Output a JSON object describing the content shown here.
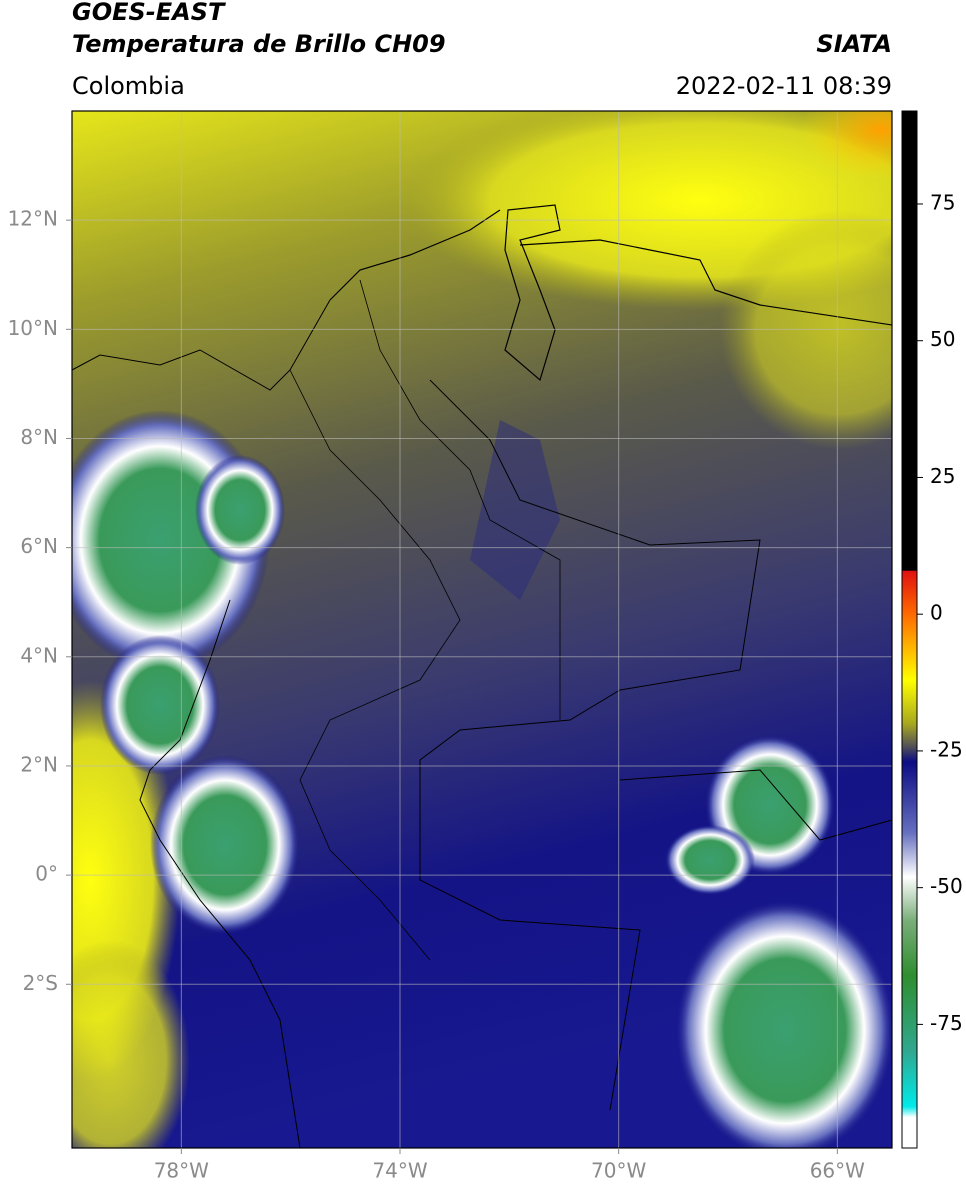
{
  "chart_data": {
    "type": "map",
    "title": "GOES-EAST",
    "subtitle": "Temperatura de Brillo CH09",
    "region": "Colombia",
    "source": "SIATA",
    "timestamp": "2022-02-11 08:39",
    "xlim": [
      -80,
      -65
    ],
    "ylim": [
      -5,
      14
    ],
    "xticks": [
      {
        "value": -78,
        "label": "78°W"
      },
      {
        "value": -74,
        "label": "74°W"
      },
      {
        "value": -70,
        "label": "70°W"
      },
      {
        "value": -66,
        "label": "66°W"
      }
    ],
    "yticks": [
      {
        "value": 12,
        "label": "12°N"
      },
      {
        "value": 10,
        "label": "10°N"
      },
      {
        "value": 8,
        "label": "8°N"
      },
      {
        "value": 6,
        "label": "6°N"
      },
      {
        "value": 4,
        "label": "4°N"
      },
      {
        "value": 2,
        "label": "2°N"
      },
      {
        "value": 0,
        "label": "0°"
      },
      {
        "value": -2,
        "label": "2°S"
      }
    ],
    "grid": true,
    "colorbar_lim": [
      -97.6,
      92
    ],
    "colorbar_ticks": [
      75,
      50,
      25,
      0,
      -25,
      -50,
      -75
    ],
    "colormap": [
      {
        "value": 92,
        "color": "#000000"
      },
      {
        "value": 8,
        "color": "#000000"
      },
      {
        "value": 7.9,
        "color": "#e01010"
      },
      {
        "value": 0,
        "color": "#ff6a00"
      },
      {
        "value": -12,
        "color": "#ffff00"
      },
      {
        "value": -20,
        "color": "#a8a820"
      },
      {
        "value": -24,
        "color": "#555555"
      },
      {
        "value": -27,
        "color": "#0c0c84"
      },
      {
        "value": -40,
        "color": "#6670c0"
      },
      {
        "value": -48,
        "color": "#ffffff"
      },
      {
        "value": -56,
        "color": "#7aae7a"
      },
      {
        "value": -66,
        "color": "#2f8f2f"
      },
      {
        "value": -80,
        "color": "#30a890"
      },
      {
        "value": -90,
        "color": "#00eaea"
      },
      {
        "value": -92,
        "color": "#ffffff"
      },
      {
        "value": -97.6,
        "color": "#ffffff"
      }
    ]
  }
}
